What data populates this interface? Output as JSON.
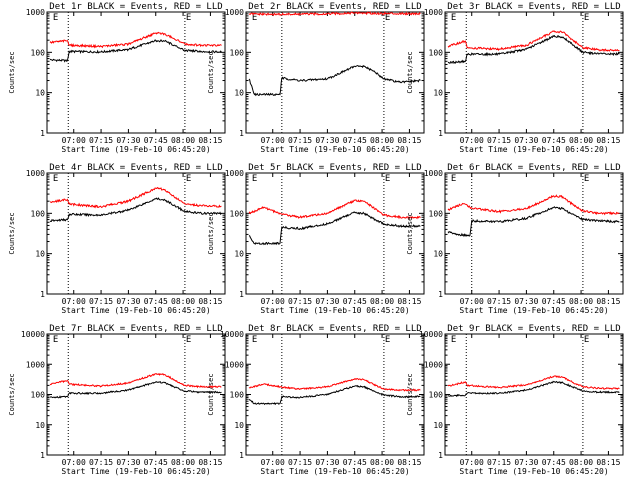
{
  "figure": {
    "colors": {
      "events": "#000000",
      "lld": "#ff0000",
      "axes": "#000000",
      "background": "#ffffff"
    }
  },
  "chart_data": [
    {
      "type": "line",
      "title": "Det 1r BLACK = Events, RED = LLD",
      "xlabel": "Start Time (19-Feb-10 06:45:20)",
      "ylabel": "Counts/sec",
      "y_scale": "log",
      "ylim": [
        1,
        1000
      ],
      "yticks": [
        "1",
        "10",
        "100",
        "1000"
      ],
      "xticks": [
        "07:00",
        "07:15",
        "07:30",
        "07:45",
        "08:00",
        "08:15"
      ],
      "xlim": [
        "06:45:20",
        "08:23:00"
      ],
      "grid": false,
      "vlines": [
        "06:57:00",
        "08:01:00"
      ],
      "markers": [
        {
          "label": "E",
          "x": "06:48:00"
        },
        {
          "label": "E",
          "x": "08:01:00"
        }
      ],
      "series": [
        {
          "name": "BLACK = Events",
          "color": "#000000",
          "x": [
            "06:47:00",
            "06:56:30",
            "06:57:30",
            "07:15:00",
            "07:30:00",
            "07:45:00",
            "07:50:00",
            "07:55:00",
            "08:01:00",
            "08:10:00",
            "08:21:00"
          ],
          "y": [
            65,
            62,
            105,
            102,
            118,
            195,
            190,
            150,
            112,
            105,
            102
          ]
        },
        {
          "name": "RED = LLD",
          "color": "#ff0000",
          "x": [
            "06:47:00",
            "06:56:30",
            "06:57:30",
            "07:15:00",
            "07:30:00",
            "07:45:00",
            "07:50:00",
            "07:55:00",
            "08:01:00",
            "08:10:00",
            "08:21:00"
          ],
          "y": [
            175,
            195,
            150,
            140,
            160,
            300,
            285,
            220,
            160,
            150,
            148
          ]
        }
      ]
    },
    {
      "type": "line",
      "title": "Det 2r BLACK = Events, RED = LLD",
      "xlabel": "Start Time (19-Feb-10 06:45:20)",
      "ylabel": "Counts/sec",
      "y_scale": "log",
      "ylim": [
        1,
        1000
      ],
      "yticks": [
        "1",
        "10",
        "100",
        "1000"
      ],
      "xticks": [
        "07:00",
        "07:15",
        "07:30",
        "07:45",
        "08:00",
        "08:15"
      ],
      "xlim": [
        "06:45:20",
        "08:23:00"
      ],
      "grid": false,
      "vlines": [
        "07:05:00",
        "08:01:00"
      ],
      "markers": [
        {
          "label": "E",
          "x": "06:48:00"
        },
        {
          "label": "E",
          "x": "08:01:00"
        }
      ],
      "series": [
        {
          "name": "BLACK = Events",
          "color": "#000000",
          "x": [
            "06:47:00",
            "06:50:00",
            "07:04:00",
            "07:05:00",
            "07:15:00",
            "07:30:00",
            "07:45:00",
            "07:50:00",
            "07:55:00",
            "08:01:00",
            "08:10:00",
            "08:21:00"
          ],
          "y": [
            22,
            9,
            9,
            23,
            20,
            22,
            45,
            45,
            35,
            22,
            18,
            20
          ]
        },
        {
          "name": "RED = LLD",
          "color": "#ff0000",
          "x": [
            "06:47:00",
            "07:00:00",
            "07:30:00",
            "07:45:00",
            "08:00:00",
            "08:21:00"
          ],
          "y": [
            900,
            870,
            900,
            950,
            920,
            910
          ]
        }
      ]
    },
    {
      "type": "line",
      "title": "Det 3r BLACK = Events, RED = LLD",
      "xlabel": "Start Time (19-Feb-10 06:45:20)",
      "ylabel": "Counts/sec",
      "y_scale": "log",
      "ylim": [
        1,
        1000
      ],
      "yticks": [
        "1",
        "10",
        "100",
        "1000"
      ],
      "xticks": [
        "07:00",
        "07:15",
        "07:30",
        "07:45",
        "08:00",
        "08:15"
      ],
      "xlim": [
        "06:45:20",
        "08:23:00"
      ],
      "grid": false,
      "vlines": [
        "06:57:00",
        "08:01:00"
      ],
      "markers": [
        {
          "label": "E",
          "x": "06:48:00"
        },
        {
          "label": "E",
          "x": "08:01:00"
        }
      ],
      "series": [
        {
          "name": "BLACK = Events",
          "color": "#000000",
          "x": [
            "06:47:00",
            "06:56:30",
            "06:57:30",
            "07:15:00",
            "07:30:00",
            "07:45:00",
            "07:50:00",
            "07:55:00",
            "08:01:00",
            "08:10:00",
            "08:21:00"
          ],
          "y": [
            55,
            60,
            90,
            90,
            120,
            250,
            240,
            160,
            100,
            92,
            90
          ]
        },
        {
          "name": "RED = LLD",
          "color": "#ff0000",
          "x": [
            "06:47:00",
            "06:56:30",
            "06:57:30",
            "07:15:00",
            "07:30:00",
            "07:45:00",
            "07:50:00",
            "07:55:00",
            "08:01:00",
            "08:10:00",
            "08:21:00"
          ],
          "y": [
            140,
            190,
            130,
            120,
            150,
            330,
            315,
            210,
            130,
            115,
            112
          ]
        }
      ]
    },
    {
      "type": "line",
      "title": "Det 4r BLACK = Events, RED = LLD",
      "xlabel": "Start Time (19-Feb-10 06:45:20)",
      "ylabel": "Counts/sec",
      "y_scale": "log",
      "ylim": [
        1,
        1000
      ],
      "yticks": [
        "1",
        "10",
        "100",
        "1000"
      ],
      "xticks": [
        "07:00",
        "07:15",
        "07:30",
        "07:45",
        "08:00",
        "08:15"
      ],
      "xlim": [
        "06:45:20",
        "08:23:00"
      ],
      "grid": false,
      "vlines": [
        "06:57:00",
        "08:01:00"
      ],
      "markers": [
        {
          "label": "E",
          "x": "06:48:00"
        },
        {
          "label": "E",
          "x": "08:01:00"
        }
      ],
      "series": [
        {
          "name": "BLACK = Events",
          "color": "#000000",
          "x": [
            "06:47:00",
            "06:56:30",
            "06:57:30",
            "07:15:00",
            "07:30:00",
            "07:45:00",
            "07:50:00",
            "07:55:00",
            "08:01:00",
            "08:10:00",
            "08:21:00"
          ],
          "y": [
            65,
            70,
            95,
            90,
            120,
            230,
            215,
            160,
            110,
            100,
            100
          ]
        },
        {
          "name": "RED = LLD",
          "color": "#ff0000",
          "x": [
            "06:47:00",
            "06:56:30",
            "06:57:30",
            "07:15:00",
            "07:30:00",
            "07:45:00",
            "07:50:00",
            "07:55:00",
            "08:01:00",
            "08:10:00",
            "08:21:00"
          ],
          "y": [
            190,
            220,
            170,
            145,
            200,
            420,
            390,
            260,
            170,
            155,
            150
          ]
        }
      ]
    },
    {
      "type": "line",
      "title": "Det 5r BLACK = Events, RED = LLD",
      "xlabel": "Start Time (19-Feb-10 06:45:20)",
      "ylabel": "Counts/sec",
      "y_scale": "log",
      "ylim": [
        1,
        1000
      ],
      "yticks": [
        "1",
        "10",
        "100",
        "1000"
      ],
      "xticks": [
        "07:00",
        "07:15",
        "07:30",
        "07:45",
        "08:00",
        "08:15"
      ],
      "xlim": [
        "06:45:20",
        "08:23:00"
      ],
      "grid": false,
      "vlines": [
        "07:05:00",
        "08:01:00"
      ],
      "markers": [
        {
          "label": "E",
          "x": "06:48:00"
        },
        {
          "label": "E",
          "x": "08:01:00"
        }
      ],
      "series": [
        {
          "name": "BLACK = Events",
          "color": "#000000",
          "x": [
            "06:47:00",
            "06:50:00",
            "07:04:00",
            "07:05:00",
            "07:15:00",
            "07:30:00",
            "07:45:00",
            "07:50:00",
            "07:55:00",
            "08:01:00",
            "08:10:00",
            "08:21:00"
          ],
          "y": [
            28,
            18,
            18,
            45,
            42,
            55,
            105,
            100,
            75,
            55,
            48,
            48
          ]
        },
        {
          "name": "RED = LLD",
          "color": "#ff0000",
          "x": [
            "06:47:00",
            "06:55:00",
            "07:05:00",
            "07:15:00",
            "07:30:00",
            "07:45:00",
            "07:50:00",
            "07:55:00",
            "08:01:00",
            "08:10:00",
            "08:21:00"
          ],
          "y": [
            100,
            140,
            95,
            80,
            100,
            210,
            200,
            140,
            90,
            80,
            78
          ]
        }
      ]
    },
    {
      "type": "line",
      "title": "Det 6r BLACK = Events, RED = LLD",
      "xlabel": "Start Time (19-Feb-10 06:45:20)",
      "ylabel": "Counts/sec",
      "y_scale": "log",
      "ylim": [
        1,
        1000
      ],
      "yticks": [
        "1",
        "10",
        "100",
        "1000"
      ],
      "xticks": [
        "07:00",
        "07:15",
        "07:30",
        "07:45",
        "08:00",
        "08:15"
      ],
      "xlim": [
        "06:45:20",
        "08:23:00"
      ],
      "grid": false,
      "vlines": [
        "07:00:00",
        "08:01:00"
      ],
      "markers": [
        {
          "label": "E",
          "x": "06:48:00"
        },
        {
          "label": "E",
          "x": "08:01:00"
        }
      ],
      "series": [
        {
          "name": "BLACK = Events",
          "color": "#000000",
          "x": [
            "06:47:00",
            "06:52:00",
            "06:59:00",
            "07:00:00",
            "07:15:00",
            "07:30:00",
            "07:45:00",
            "07:50:00",
            "07:55:00",
            "08:01:00",
            "08:10:00",
            "08:21:00"
          ],
          "y": [
            35,
            30,
            28,
            65,
            62,
            75,
            140,
            130,
            95,
            70,
            65,
            62
          ]
        },
        {
          "name": "RED = LLD",
          "color": "#ff0000",
          "x": [
            "06:47:00",
            "06:55:00",
            "07:00:00",
            "07:15:00",
            "07:30:00",
            "07:45:00",
            "07:50:00",
            "07:55:00",
            "08:01:00",
            "08:10:00",
            "08:21:00"
          ],
          "y": [
            120,
            175,
            135,
            110,
            130,
            270,
            255,
            170,
            115,
            100,
            100
          ]
        }
      ]
    },
    {
      "type": "line",
      "title": "Det 7r BLACK = Events, RED = LLD",
      "xlabel": "Start Time (19-Feb-10 06:45:20)",
      "ylabel": "Counts/sec",
      "y_scale": "log",
      "ylim": [
        1,
        10000
      ],
      "yticks": [
        "1",
        "10",
        "100",
        "1000",
        "10000"
      ],
      "xticks": [
        "07:00",
        "07:15",
        "07:30",
        "07:45",
        "08:00",
        "08:15"
      ],
      "xlim": [
        "06:45:20",
        "08:23:00"
      ],
      "grid": false,
      "vlines": [
        "06:57:00",
        "08:01:00"
      ],
      "markers": [
        {
          "label": "E",
          "x": "06:48:00"
        },
        {
          "label": "E",
          "x": "08:01:00"
        }
      ],
      "series": [
        {
          "name": "BLACK = Events",
          "color": "#000000",
          "x": [
            "06:47:00",
            "06:56:30",
            "06:57:30",
            "07:15:00",
            "07:30:00",
            "07:45:00",
            "07:50:00",
            "07:55:00",
            "08:01:00",
            "08:10:00",
            "08:21:00"
          ],
          "y": [
            80,
            85,
            110,
            110,
            140,
            260,
            245,
            180,
            130,
            120,
            120
          ]
        },
        {
          "name": "RED = LLD",
          "color": "#ff0000",
          "x": [
            "06:47:00",
            "06:56:30",
            "06:57:30",
            "07:15:00",
            "07:30:00",
            "07:45:00",
            "07:50:00",
            "07:55:00",
            "08:01:00",
            "08:10:00",
            "08:21:00"
          ],
          "y": [
            220,
            290,
            220,
            190,
            240,
            480,
            450,
            310,
            200,
            180,
            180
          ]
        }
      ]
    },
    {
      "type": "line",
      "title": "Det 8r BLACK = Events, RED = LLD",
      "xlabel": "Start Time (19-Feb-10 06:45:20)",
      "ylabel": "Counts/sec",
      "y_scale": "log",
      "ylim": [
        1,
        10000
      ],
      "yticks": [
        "1",
        "10",
        "100",
        "1000",
        "10000"
      ],
      "xticks": [
        "07:00",
        "07:15",
        "07:30",
        "07:45",
        "08:00",
        "08:15"
      ],
      "xlim": [
        "06:45:20",
        "08:23:00"
      ],
      "grid": false,
      "vlines": [
        "07:05:00",
        "08:01:00"
      ],
      "markers": [
        {
          "label": "E",
          "x": "06:48:00"
        },
        {
          "label": "E",
          "x": "08:01:00"
        }
      ],
      "series": [
        {
          "name": "BLACK = Events",
          "color": "#000000",
          "x": [
            "06:47:00",
            "06:50:00",
            "07:04:00",
            "07:05:00",
            "07:15:00",
            "07:30:00",
            "07:45:00",
            "07:50:00",
            "07:55:00",
            "08:01:00",
            "08:10:00",
            "08:21:00"
          ],
          "y": [
            70,
            50,
            50,
            85,
            80,
            100,
            190,
            180,
            130,
            95,
            85,
            85
          ]
        },
        {
          "name": "RED = LLD",
          "color": "#ff0000",
          "x": [
            "06:47:00",
            "06:55:00",
            "07:05:00",
            "07:15:00",
            "07:30:00",
            "07:45:00",
            "07:50:00",
            "07:55:00",
            "08:01:00",
            "08:10:00",
            "08:21:00"
          ],
          "y": [
            170,
            220,
            175,
            150,
            180,
            330,
            310,
            220,
            150,
            140,
            140
          ]
        }
      ]
    },
    {
      "type": "line",
      "title": "Det 9r BLACK = Events, RED = LLD",
      "xlabel": "Start Time (19-Feb-10 06:45:20)",
      "ylabel": "Counts/sec",
      "y_scale": "log",
      "ylim": [
        1,
        10000
      ],
      "yticks": [
        "1",
        "10",
        "100",
        "1000",
        "10000"
      ],
      "xticks": [
        "07:00",
        "07:15",
        "07:30",
        "07:45",
        "08:00",
        "08:15"
      ],
      "xlim": [
        "06:45:20",
        "08:23:00"
      ],
      "grid": false,
      "vlines": [
        "06:57:00",
        "08:01:00"
      ],
      "markers": [
        {
          "label": "E",
          "x": "06:48:00"
        },
        {
          "label": "E",
          "x": "08:01:00"
        }
      ],
      "series": [
        {
          "name": "BLACK = Events",
          "color": "#000000",
          "x": [
            "06:47:00",
            "06:56:30",
            "06:57:30",
            "07:15:00",
            "07:30:00",
            "07:45:00",
            "07:50:00",
            "07:55:00",
            "08:01:00",
            "08:10:00",
            "08:21:00"
          ],
          "y": [
            90,
            95,
            110,
            110,
            140,
            260,
            245,
            180,
            130,
            120,
            120
          ]
        },
        {
          "name": "RED = LLD",
          "color": "#ff0000",
          "x": [
            "06:47:00",
            "06:56:30",
            "06:57:30",
            "07:15:00",
            "07:30:00",
            "07:45:00",
            "07:50:00",
            "07:55:00",
            "08:01:00",
            "08:10:00",
            "08:21:00"
          ],
          "y": [
            190,
            260,
            200,
            170,
            210,
            400,
            375,
            260,
            180,
            160,
            155
          ]
        }
      ]
    }
  ]
}
